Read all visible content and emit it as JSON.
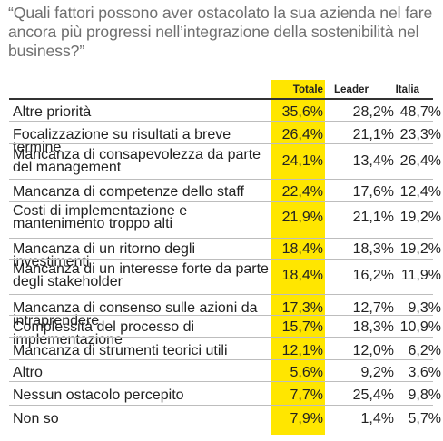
{
  "question": "“Quali fattori possono aver ostacolato la sua azienda nel fare ancora più progressi nell’integrazione della sostenibilità nel business?”",
  "highlight_color": "#ffe600",
  "headers": {
    "totale": "Totale",
    "leader": "Leader",
    "italia": "Italia"
  },
  "rows": [
    {
      "label": "Altre priorità",
      "totale": "35,6%",
      "leader": "28,2%",
      "italia": "48,7%"
    },
    {
      "label": "Focalizzazione su risultati a breve termine",
      "totale": "26,4%",
      "leader": "21,1%",
      "italia": "23,3%"
    },
    {
      "label": "Mancanza di consapevolezza da parte del management",
      "totale": "24,1%",
      "leader": "13,4%",
      "italia": "26,4%"
    },
    {
      "label": "Mancanza di competenze dello staff",
      "totale": "22,4%",
      "leader": "17,6%",
      "italia": "12,4%"
    },
    {
      "label": "Costi di implementazione e mantenimento troppo alti",
      "totale": "21,9%",
      "leader": "21,1%",
      "italia": "19,2%"
    },
    {
      "label": "Mancanza di un ritorno degli investimenti",
      "totale": "18,4%",
      "leader": "18,3%",
      "italia": "19,2%"
    },
    {
      "label": "Mancanza di un interesse forte da parte degli stakeholder",
      "totale": "18,4%",
      "leader": "16,2%",
      "italia": "11,9%"
    },
    {
      "label": "Mancanza di consenso sulle azioni da intraprendere",
      "totale": "17,3%",
      "leader": "12,7%",
      "italia": "9,3%"
    },
    {
      "label": "Complessità del processo di implementazione",
      "totale": "15,7%",
      "leader": "18,3%",
      "italia": "10,9%"
    },
    {
      "label": "Mancanza di strumenti teorici utili",
      "totale": "12,1%",
      "leader": "12,0%",
      "italia": "6,2%"
    },
    {
      "label": "Altro",
      "totale": "5,6%",
      "leader": "9,2%",
      "italia": "3,6%"
    },
    {
      "label": "Nessun ostacolo percepito",
      "totale": "7,7%",
      "leader": "25,4%",
      "italia": "9,8%"
    },
    {
      "label": "Non so",
      "totale": "7,9%",
      "leader": "1,4%",
      "italia": "5,7%"
    }
  ]
}
